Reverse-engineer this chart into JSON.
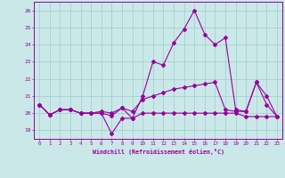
{
  "xlabel": "Windchill (Refroidissement éolien,°C)",
  "xlim": [
    -0.5,
    23.5
  ],
  "ylim": [
    18.5,
    26.5
  ],
  "yticks": [
    19,
    20,
    21,
    22,
    23,
    24,
    25,
    26
  ],
  "xticks": [
    0,
    1,
    2,
    3,
    4,
    5,
    6,
    7,
    8,
    9,
    10,
    11,
    12,
    13,
    14,
    15,
    16,
    17,
    18,
    19,
    20,
    21,
    22,
    23
  ],
  "background_color": "#cbe8e8",
  "grid_color": "#99cccc",
  "line_color": "#990099",
  "line1_y": [
    20.5,
    19.9,
    20.2,
    20.2,
    20.0,
    20.0,
    20.0,
    19.85,
    20.3,
    19.7,
    21.0,
    23.0,
    22.8,
    24.1,
    24.9,
    26.0,
    24.6,
    24.0,
    24.4,
    20.2,
    20.1,
    21.8,
    21.0,
    19.8
  ],
  "line2_y": [
    20.5,
    19.9,
    20.2,
    20.2,
    20.0,
    20.0,
    20.1,
    20.0,
    20.3,
    20.1,
    20.8,
    21.0,
    21.2,
    21.4,
    21.5,
    21.6,
    21.7,
    21.8,
    20.2,
    20.1,
    20.1,
    21.8,
    20.5,
    19.8
  ],
  "line3_y": [
    20.5,
    19.9,
    20.2,
    20.2,
    20.0,
    20.0,
    20.0,
    18.8,
    19.7,
    19.7,
    20.0,
    20.0,
    20.0,
    20.0,
    20.0,
    20.0,
    20.0,
    20.0,
    20.0,
    20.0,
    19.8,
    19.8,
    19.8,
    19.8
  ]
}
